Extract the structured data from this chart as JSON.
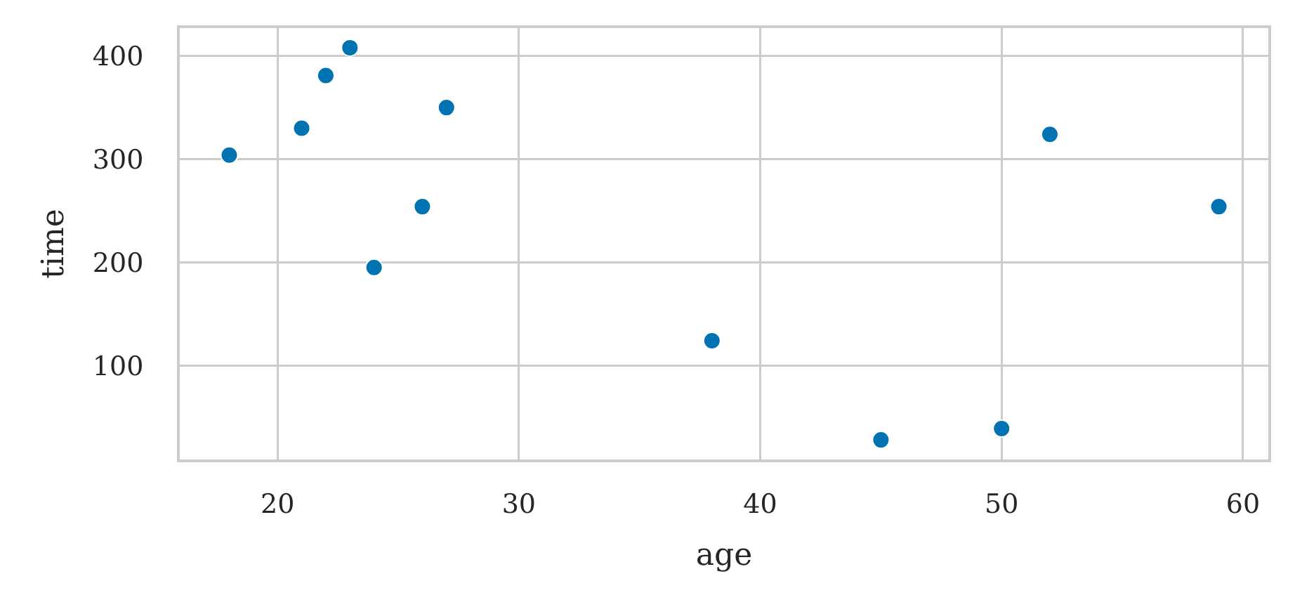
{
  "chart_data": {
    "type": "scatter",
    "xlabel": "age",
    "ylabel": "time",
    "x": [
      18,
      21,
      22,
      23,
      24,
      26,
      27,
      38,
      45,
      50,
      52,
      59
    ],
    "values": [
      304,
      330,
      381,
      408,
      195,
      254,
      350,
      124,
      28,
      39,
      324,
      254
    ],
    "color": "#0173b2",
    "marker": "circle",
    "xlim": [
      15.95,
      61.05
    ],
    "xticks": [
      20,
      30,
      40,
      50,
      60
    ],
    "ylim": [
      9,
      427
    ],
    "yticks": [
      100,
      200,
      300,
      400
    ],
    "grid": true
  }
}
